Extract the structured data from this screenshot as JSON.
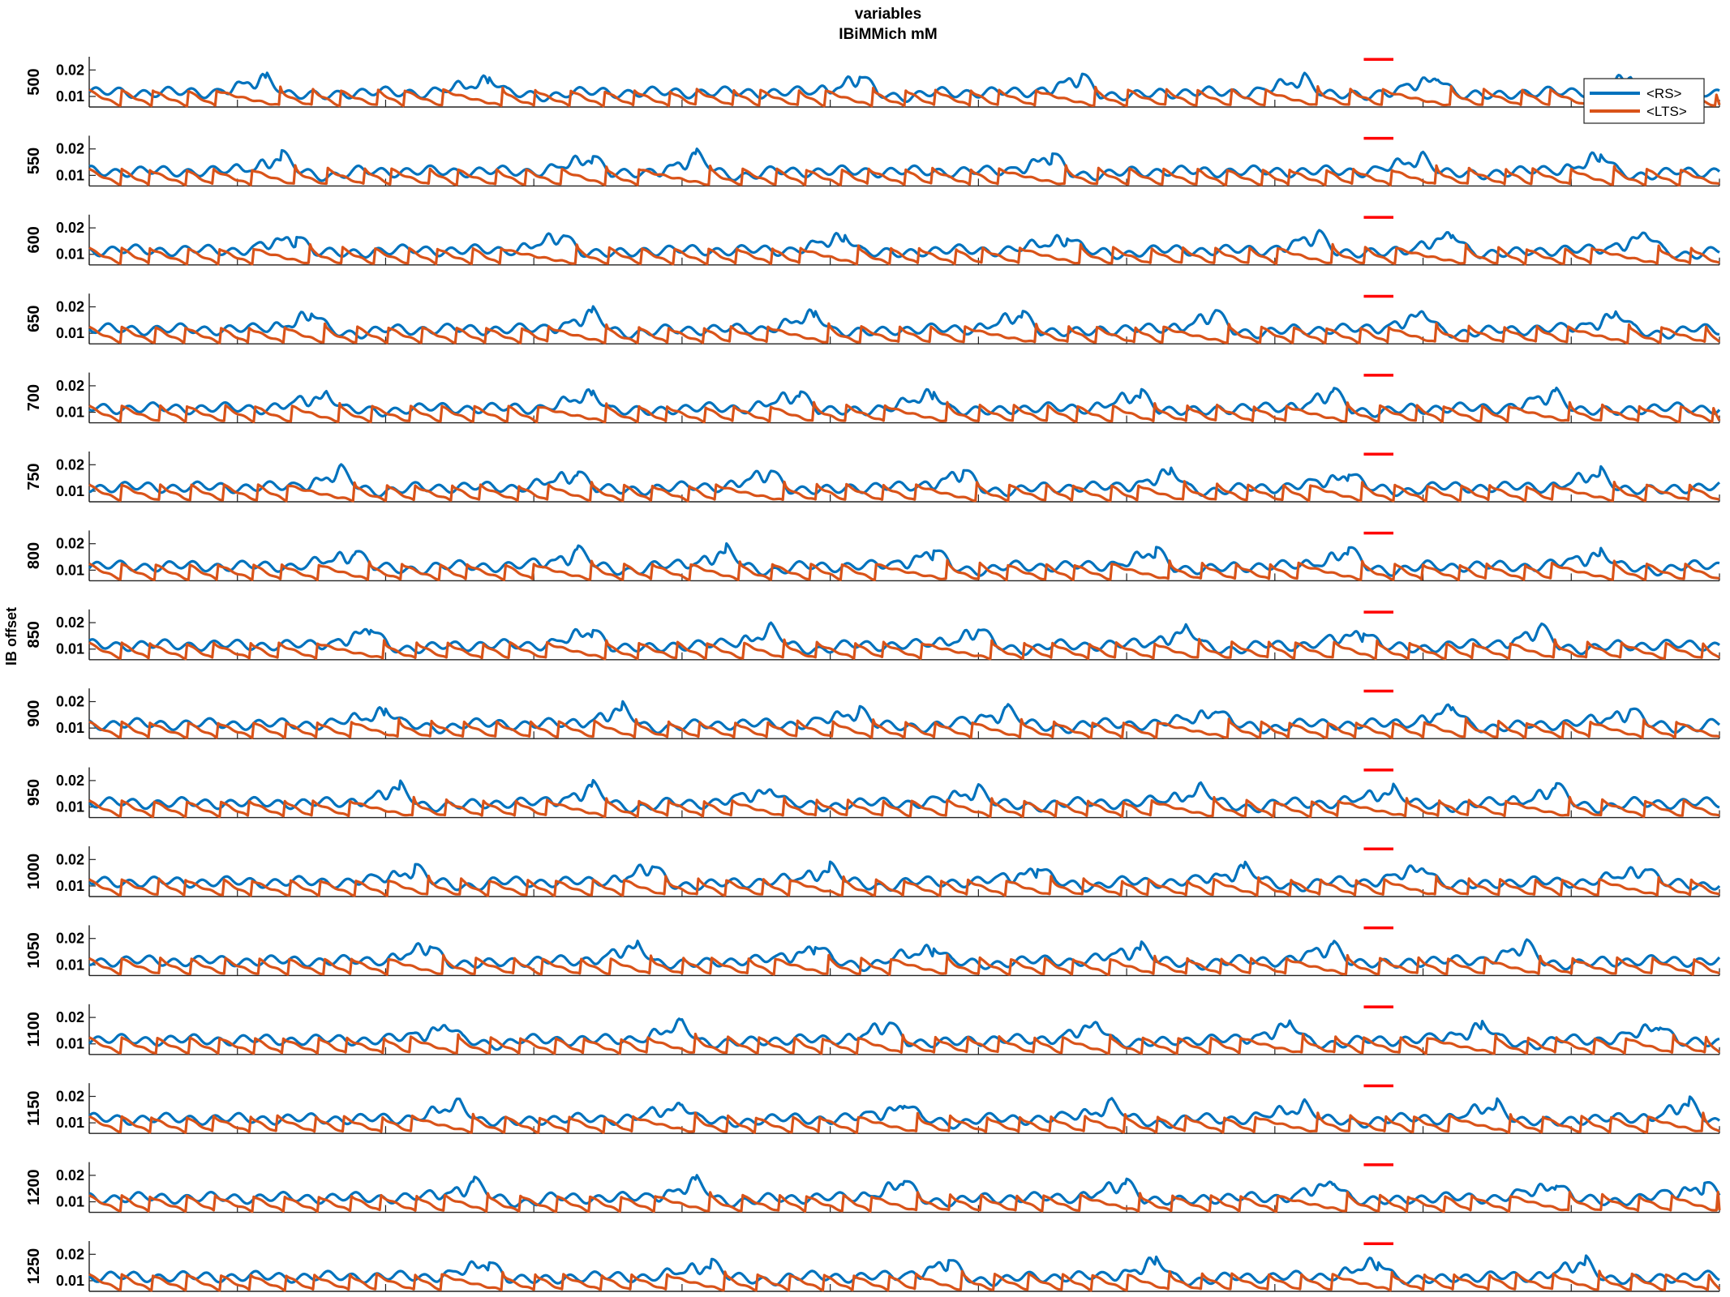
{
  "title": "variables",
  "subtitle": "IBiMMich mM",
  "chart_data": {
    "type": "line",
    "title": "variables",
    "subtitle": "IBiMMich mM",
    "ylabel": "IB offset",
    "xlabel": "",
    "xlim": [
      0,
      5500
    ],
    "x_ticks": [
      0,
      500,
      1000,
      1500,
      2000,
      2500,
      3000,
      3500,
      4000,
      4500,
      5000,
      5500
    ],
    "ylim": [
      0.006,
      0.025
    ],
    "y_ticks": [
      0.01,
      0.02
    ],
    "legend_position": "top-right",
    "grid": false,
    "series_names": [
      "<RS>",
      "<LTS>"
    ],
    "series_colors": [
      "#0072BD",
      "#D95319"
    ],
    "marker_color": "#FF0000",
    "stimulus_marker": {
      "x_start": 4300,
      "x_end": 4400,
      "y": 0.024
    },
    "rows": [
      {
        "offset": "500",
        "peaks": [
          600,
          1350,
          2600,
          3350,
          4100,
          4550,
          5200
        ]
      },
      {
        "offset": "550",
        "peaks": [
          650,
          1700,
          2050,
          3250,
          4500,
          5100
        ]
      },
      {
        "offset": "600",
        "peaks": [
          700,
          1600,
          2550,
          3300,
          4150,
          4600,
          5250
        ]
      },
      {
        "offset": "650",
        "peaks": [
          750,
          1700,
          2450,
          3150,
          3800,
          4500,
          5150
        ]
      },
      {
        "offset": "700",
        "peaks": [
          800,
          1700,
          2400,
          2850,
          3550,
          4200,
          4950
        ]
      },
      {
        "offset": "750",
        "peaks": [
          850,
          1650,
          2300,
          2950,
          3650,
          4250,
          5100
        ]
      },
      {
        "offset": "800",
        "peaks": [
          900,
          1650,
          2150,
          2850,
          3600,
          4250,
          5100
        ]
      },
      {
        "offset": "850",
        "peaks": [
          950,
          1700,
          2300,
          3000,
          3700,
          4300,
          4900
        ]
      },
      {
        "offset": "900",
        "peaks": [
          1000,
          1800,
          2600,
          3100,
          3800,
          4600,
          5200
        ]
      },
      {
        "offset": "950",
        "peaks": [
          1050,
          1700,
          2300,
          3000,
          3750,
          4400,
          4950
        ]
      },
      {
        "offset": "1000",
        "peaks": [
          1100,
          1900,
          2500,
          3200,
          3900,
          4500,
          5250
        ]
      },
      {
        "offset": "1050",
        "peaks": [
          1150,
          1850,
          2450,
          2850,
          3550,
          4200,
          4850
        ]
      },
      {
        "offset": "1100",
        "peaks": [
          1200,
          2000,
          2700,
          3400,
          4050,
          4700,
          5300
        ]
      },
      {
        "offset": "1150",
        "peaks": [
          1250,
          2000,
          2750,
          3450,
          4100,
          4750,
          5400
        ]
      },
      {
        "offset": "1200",
        "peaks": [
          1300,
          2050,
          2750,
          3500,
          4200,
          4950,
          5450
        ]
      },
      {
        "offset": "1250",
        "peaks": [
          1350,
          2100,
          2900,
          3600,
          4350,
          5050
        ]
      }
    ],
    "series": [
      {
        "name": "<RS>",
        "baseline": 0.012,
        "oscillation_amplitude": 0.0015,
        "burst_peak": 0.019
      },
      {
        "name": "<LTS>",
        "baseline": 0.009,
        "ramp_low": 0.006,
        "reset_high": 0.013
      }
    ]
  }
}
